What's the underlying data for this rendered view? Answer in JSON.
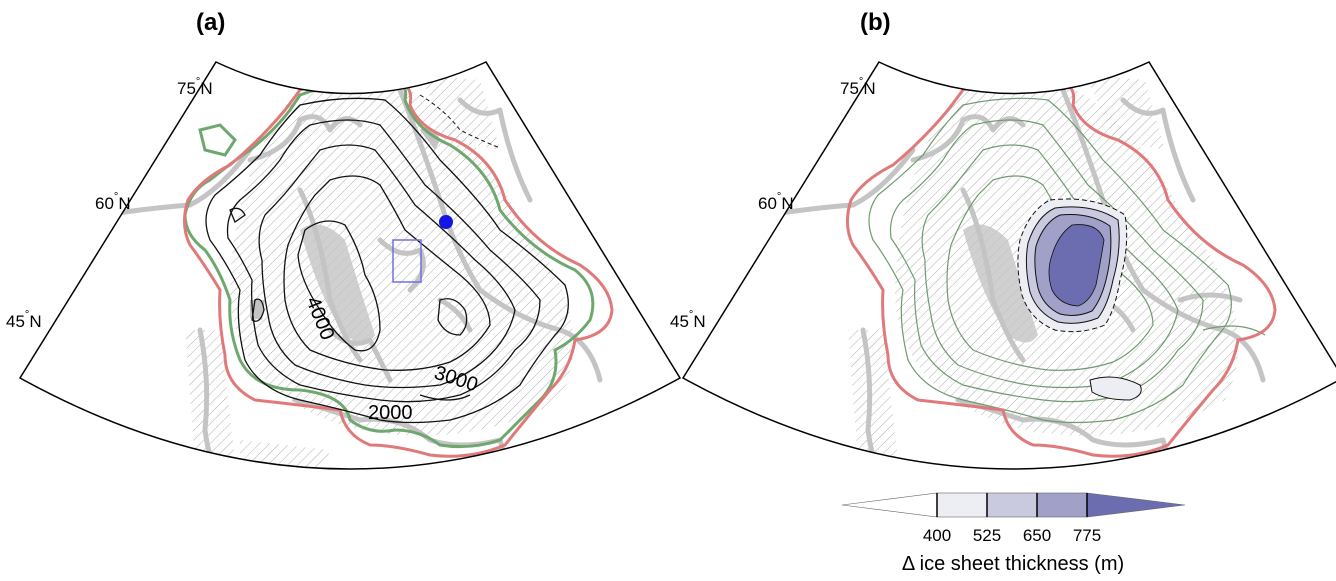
{
  "panels": [
    {
      "label": "(a)",
      "lat_labels": [
        {
          "deg": "75",
          "hemi": "N"
        },
        {
          "deg": "60",
          "hemi": "N"
        },
        {
          "deg": "45",
          "hemi": "N"
        }
      ],
      "contour_labels": [
        "4000",
        "3000",
        "2000"
      ]
    },
    {
      "label": "(b)",
      "lat_labels": [
        {
          "deg": "75",
          "hemi": "N"
        },
        {
          "deg": "60",
          "hemi": "N"
        },
        {
          "deg": "45",
          "hemi": "N"
        }
      ]
    }
  ],
  "colorbar": {
    "ticks": [
      "400",
      "525",
      "650",
      "775"
    ],
    "title": "Δ ice sheet thickness (m)",
    "colors": [
      "#ffffff",
      "#ededf4",
      "#c9c9df",
      "#a0a0c9",
      "#6c6cb0"
    ]
  },
  "colors": {
    "red_margin": "#e07a7a",
    "green_margin": "#6fa86f",
    "land": "#c4c4c4",
    "thin_green": "#6f9a6f",
    "marker": "#1414e6",
    "box": "#7070e0",
    "thick_fill": "#6c6cb0"
  }
}
